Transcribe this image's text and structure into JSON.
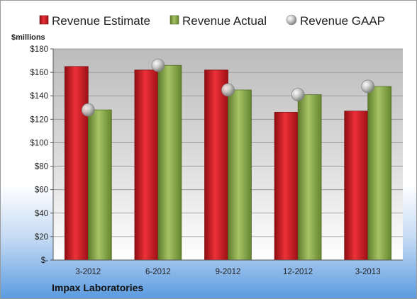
{
  "colors": {
    "estimate": "#d41e26",
    "actual": "#8fb050",
    "gaap": "#b9b9b9"
  },
  "chart_data": {
    "type": "bar",
    "ylabel": "$millions",
    "company": "Impax Laboratories",
    "categories": [
      "3-2012",
      "6-2012",
      "9-2012",
      "12-2012",
      "3-2013"
    ],
    "ylim": [
      0,
      180
    ],
    "yticks": [
      0,
      20,
      40,
      60,
      80,
      100,
      120,
      140,
      160,
      180
    ],
    "ytick_labels": [
      "$-",
      "$20",
      "$40",
      "$60",
      "$80",
      "$100",
      "$120",
      "$140",
      "$160",
      "$180"
    ],
    "grid": true,
    "legend_position": "top",
    "series": [
      {
        "name": "Revenue Estimate",
        "kind": "bar",
        "values": [
          165,
          162,
          162,
          126,
          127
        ]
      },
      {
        "name": "Revenue Actual",
        "kind": "bar",
        "values": [
          128,
          166,
          145,
          141,
          148
        ]
      },
      {
        "name": "Revenue GAAP",
        "kind": "marker",
        "values": [
          128,
          166,
          145,
          141,
          148
        ]
      }
    ]
  }
}
